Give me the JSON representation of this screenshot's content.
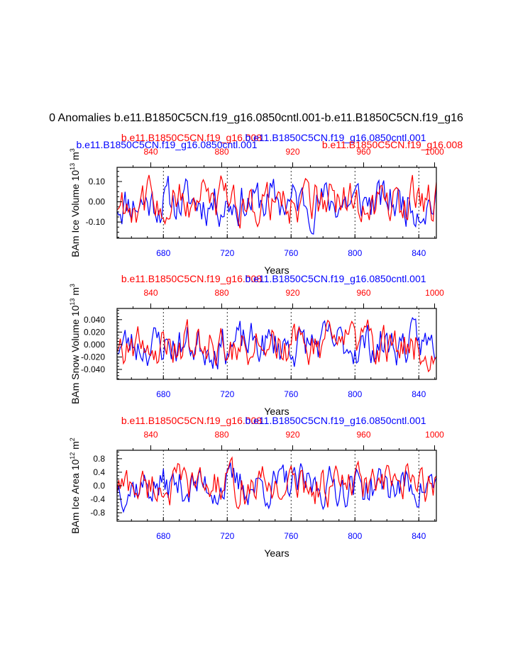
{
  "page": {
    "main_title": "0 Anomalies b.e11.B1850C5CN.f19_g16.0850cntl.001-b.e11.B1850C5CN.f19_g16"
  },
  "colors": {
    "control": "#0000ff",
    "experiment": "#ff0000",
    "axis": "#000000"
  },
  "chart_data": [
    {
      "type": "line",
      "ylabel_main": "BAm Ice Volume 10",
      "ylabel_exp": "13",
      "ylabel_unit": "m",
      "ylabel_unit_exp": "3",
      "xlabel": "Years",
      "legend_control": "b.e11.B1850C5CN.f19_g16.0850cntl.001",
      "legend_experiment": "b.e11.B1850C5CN.f19_g16.008",
      "bottom_axis": {
        "range": [
          651,
          851
        ],
        "ticks": [
          680,
          720,
          760,
          800,
          840
        ]
      },
      "top_axis": {
        "range": [
          821,
          1001
        ],
        "ticks": [
          840,
          880,
          920,
          960,
          1000
        ]
      },
      "ylim": [
        -0.18,
        0.17
      ],
      "yticks": [
        -0.1,
        0.0,
        0.1
      ],
      "ytick_labels": [
        "-0.10",
        "0.00",
        "0.10"
      ],
      "seed": 11,
      "amplitude": 0.085,
      "series": [
        {
          "name": "b.e11.B1850C5CN.f19_g16.0850cntl.001",
          "color": "#0000ff",
          "values": []
        },
        {
          "name": "b.e11.B1850C5CN.f19_g16.008",
          "color": "#ff0000",
          "values": []
        }
      ]
    },
    {
      "type": "line",
      "ylabel_main": "BAm Snow Volume 10",
      "ylabel_exp": "13",
      "ylabel_unit": "m",
      "ylabel_unit_exp": "3",
      "xlabel": "Years",
      "legend_control": "b.e11.B1850C5CN.f19_g16.0850cntl.001",
      "legend_experiment": "b.e11.B1850C5CN.f19_g16.008",
      "bottom_axis": {
        "range": [
          651,
          851
        ],
        "ticks": [
          680,
          720,
          760,
          800,
          840
        ]
      },
      "top_axis": {
        "range": [
          821,
          1001
        ],
        "ticks": [
          840,
          880,
          920,
          960,
          1000
        ]
      },
      "ylim": [
        -0.056,
        0.058
      ],
      "yticks": [
        -0.04,
        -0.02,
        0.0,
        0.02,
        0.04
      ],
      "ytick_labels": [
        "-0.040",
        "-0.020",
        "0.000",
        "0.020",
        "0.040"
      ],
      "seed": 23,
      "amplitude": 0.026,
      "series": [
        {
          "name": "b.e11.B1850C5CN.f19_g16.0850cntl.001",
          "color": "#0000ff",
          "values": []
        },
        {
          "name": "b.e11.B1850C5CN.f19_g16.008",
          "color": "#ff0000",
          "values": []
        }
      ]
    },
    {
      "type": "line",
      "ylabel_main": "BAm Ice Area 10",
      "ylabel_exp": "12",
      "ylabel_unit": "m",
      "ylabel_unit_exp": "2",
      "xlabel": "Years",
      "legend_control": "b.e11.B1850C5CN.f19_g16.0850cntl.001",
      "legend_experiment": "b.e11.B1850C5CN.f19_g16.008",
      "bottom_axis": {
        "range": [
          651,
          851
        ],
        "ticks": [
          680,
          720,
          760,
          800,
          840
        ]
      },
      "top_axis": {
        "range": [
          821,
          1001
        ],
        "ticks": [
          840,
          880,
          920,
          960,
          1000
        ]
      },
      "ylim": [
        -1.05,
        1.05
      ],
      "yticks": [
        -0.8,
        -0.4,
        0.0,
        0.4,
        0.8
      ],
      "ytick_labels": [
        "-0.8",
        "-0.4",
        "0.0",
        "0.4",
        "0.8"
      ],
      "seed": 37,
      "amplitude": 0.45,
      "series": [
        {
          "name": "b.e11.B1850C5CN.f19_g16.0850cntl.001",
          "color": "#0000ff",
          "values": []
        },
        {
          "name": "b.e11.B1850C5CN.f19_g16.008",
          "color": "#ff0000",
          "values": []
        }
      ]
    }
  ]
}
